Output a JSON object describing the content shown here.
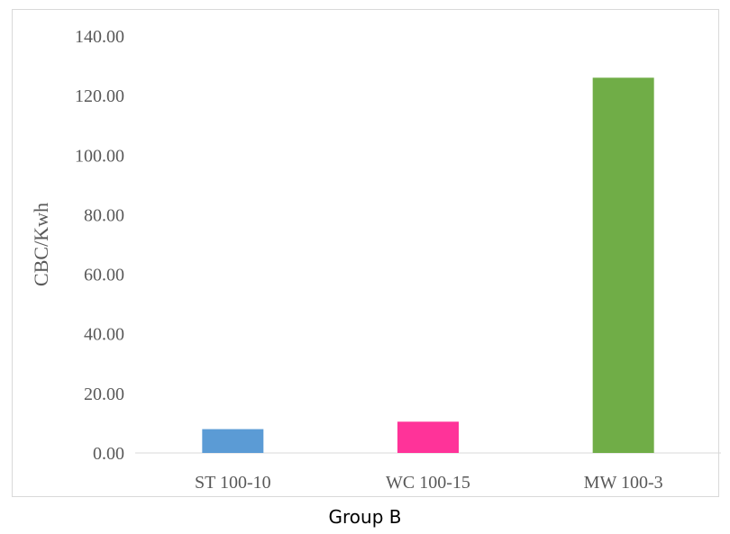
{
  "caption": "Group B",
  "chart_data": {
    "type": "bar",
    "categories": [
      "ST 100-10",
      "WC 100-15",
      "MW 100-3"
    ],
    "values": [
      8.0,
      10.5,
      126.0
    ],
    "colors": [
      "#5b9bd5",
      "#ff3399",
      "#70ad47"
    ],
    "title": "",
    "xlabel": "",
    "ylabel": "CBC/Kwh",
    "ylim": [
      0,
      140
    ],
    "yticks": [
      "0.00",
      "20.00",
      "40.00",
      "60.00",
      "80.00",
      "100.00",
      "120.00",
      "140.00"
    ],
    "grid": false,
    "legend": "none"
  }
}
